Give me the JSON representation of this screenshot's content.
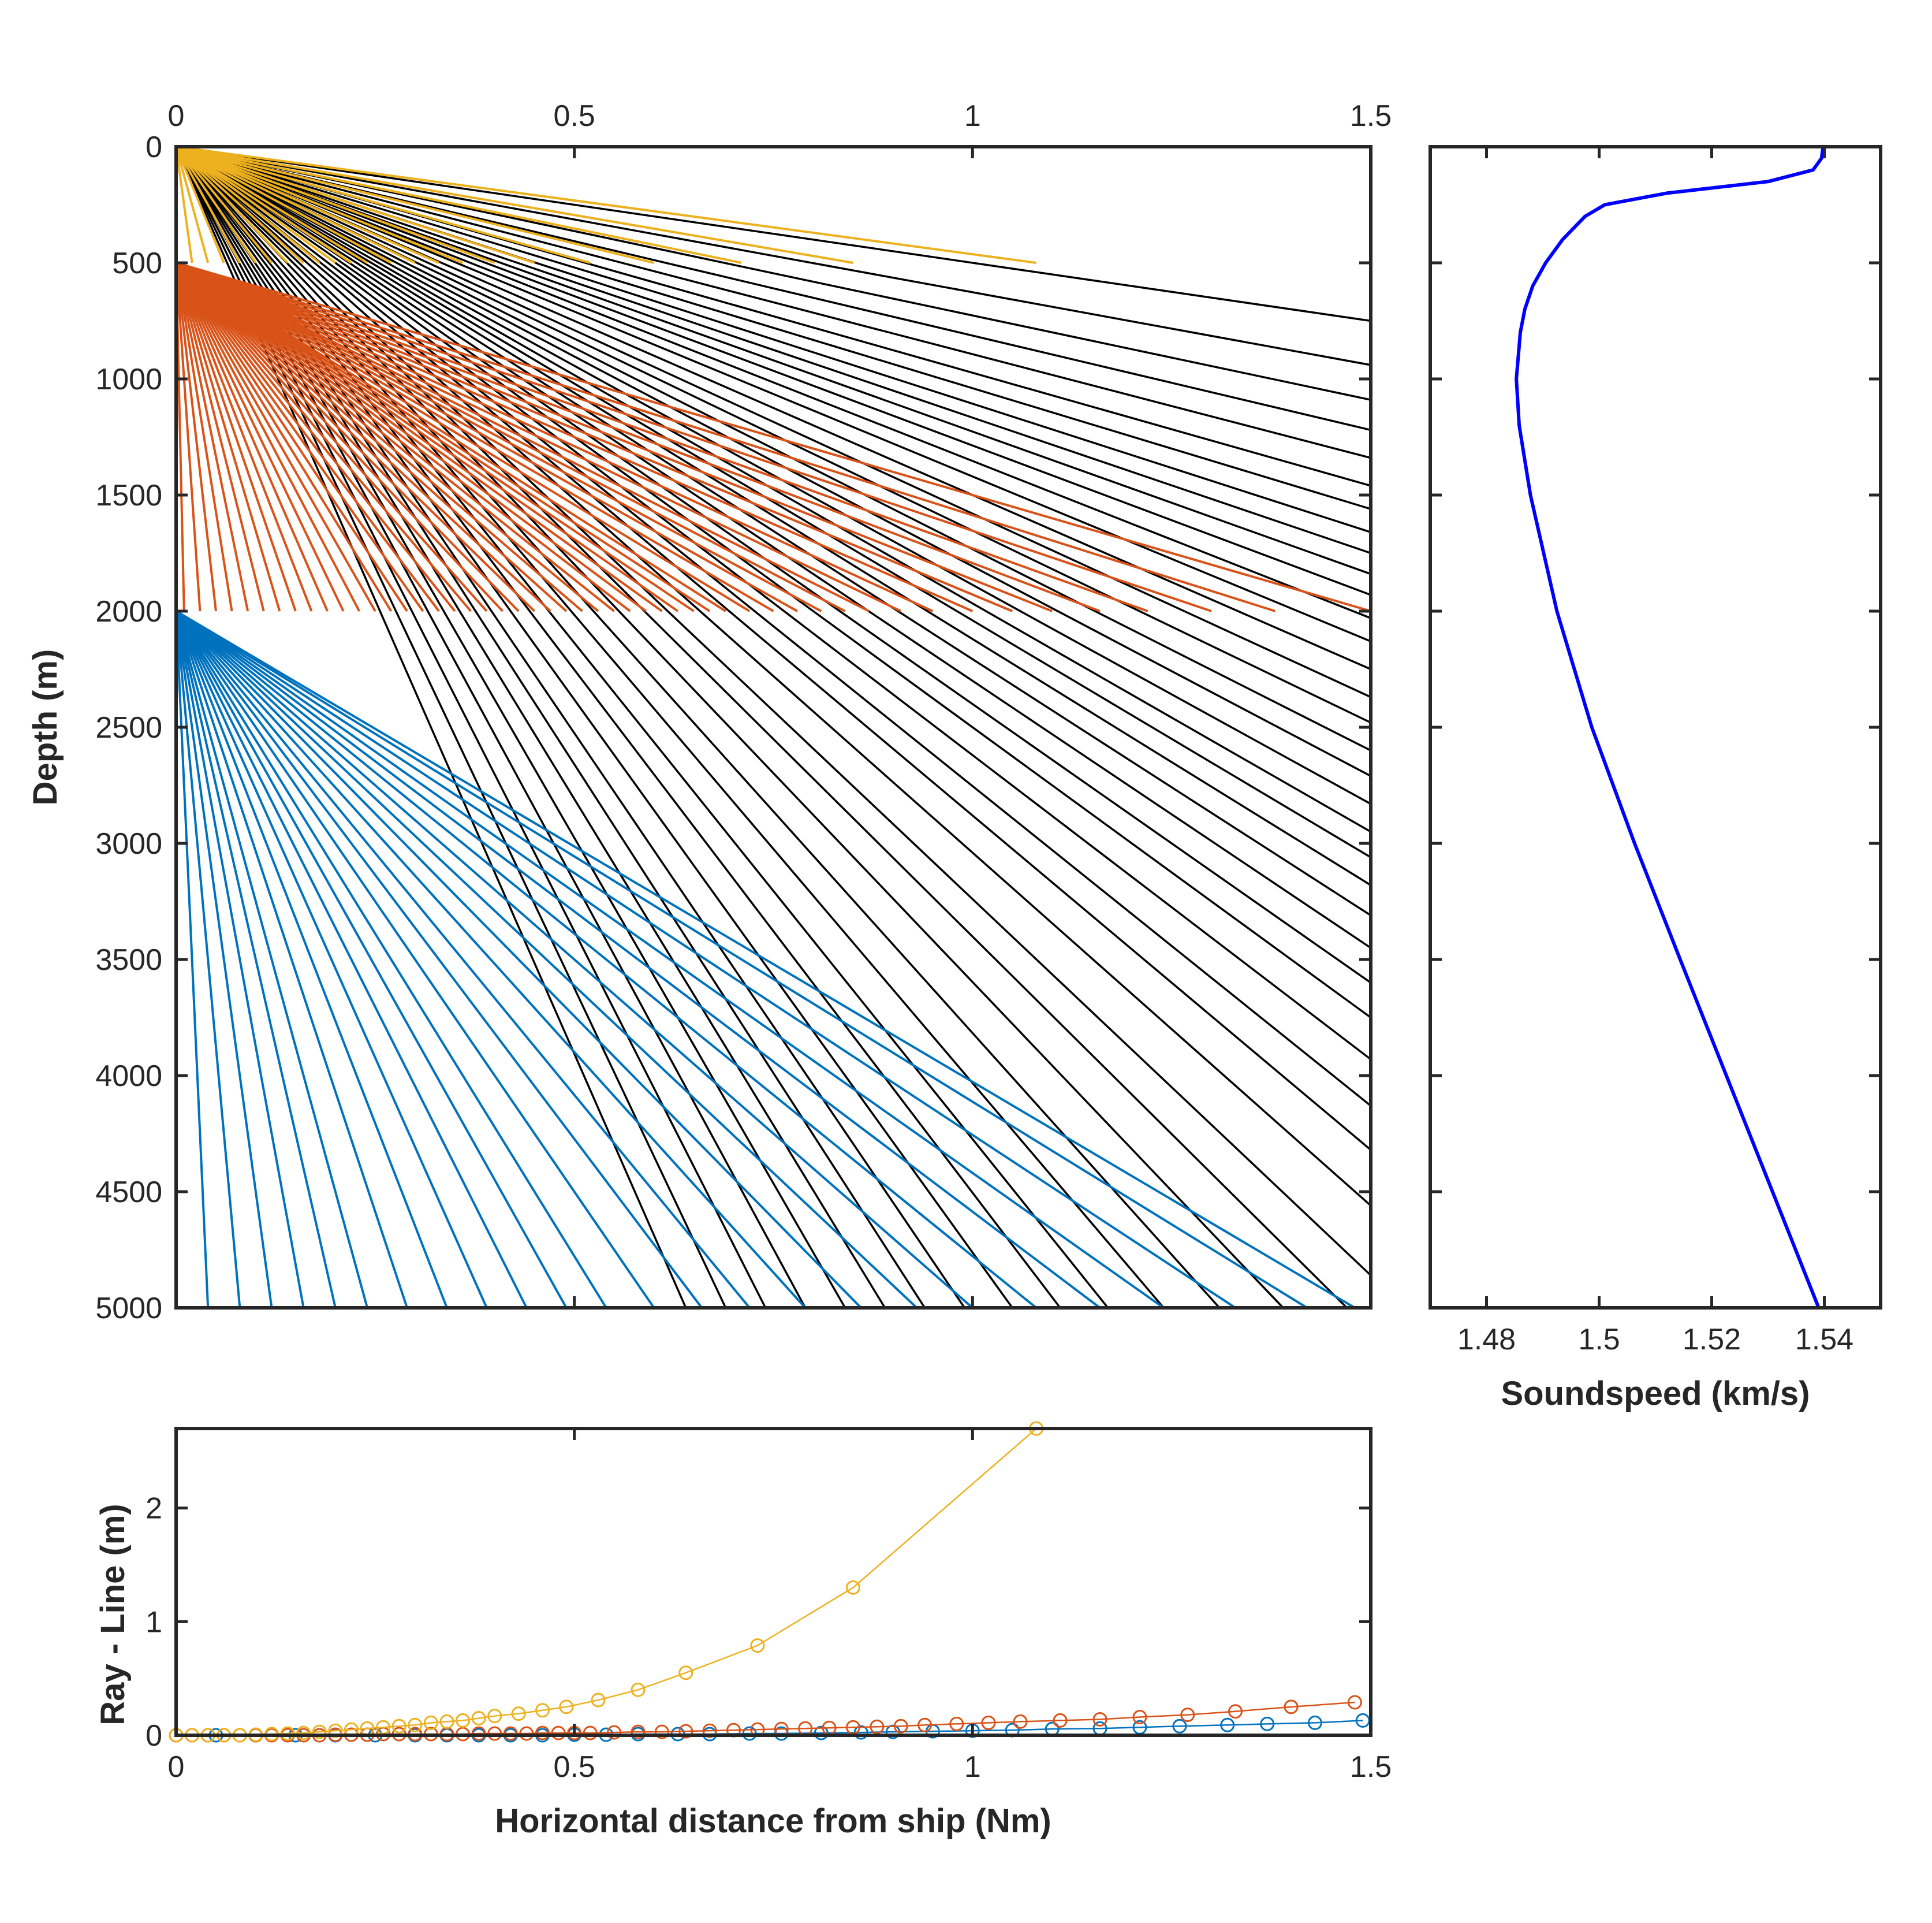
{
  "chart_data": [
    {
      "id": "ray-paths",
      "type": "line",
      "title": "",
      "xlabel": "",
      "ylabel": "Depth (m)",
      "xlim": [
        0,
        1.5
      ],
      "ylim": [
        0,
        5000
      ],
      "y_reversed": true,
      "x_axis_position": "top",
      "xticks": [
        "0",
        "0.5",
        "1",
        "1.5"
      ],
      "yticks": [
        "0",
        "500",
        "1000",
        "1500",
        "2000",
        "2500",
        "3000",
        "3500",
        "4000",
        "4500",
        "5000"
      ],
      "grid": false,
      "legend": "none",
      "colors": {
        "straight_line": "#000000",
        "ray_0_500": "#EDB120",
        "ray_500_2000": "#D95319",
        "ray_2000_5000": "#0072BD"
      },
      "fans": [
        {
          "series": "ray_0_500",
          "depth_top": 0,
          "depth_bottom": 500,
          "x_at_bottom": [
            0,
            0.02,
            0.04,
            0.06,
            0.08,
            0.1,
            0.12,
            0.14,
            0.16,
            0.18,
            0.2,
            0.22,
            0.24,
            0.27,
            0.3,
            0.33,
            0.36,
            0.4,
            0.45,
            0.52,
            0.6,
            0.71,
            0.85,
            1.08
          ]
        },
        {
          "series": "ray_500_2000",
          "depth_top": 500,
          "depth_bottom": 2000,
          "x_at_bottom": [
            0.0,
            0.01,
            0.03,
            0.05,
            0.07,
            0.09,
            0.11,
            0.13,
            0.15,
            0.17,
            0.19,
            0.21,
            0.23,
            0.25,
            0.27,
            0.29,
            0.31,
            0.33,
            0.35,
            0.37,
            0.39,
            0.41,
            0.43,
            0.45,
            0.47,
            0.49,
            0.51,
            0.53,
            0.55,
            0.57,
            0.59,
            0.61,
            0.63,
            0.65,
            0.67,
            0.69,
            0.72,
            0.75,
            0.78,
            0.81,
            0.84,
            0.87,
            0.91,
            0.95,
            1.0,
            1.05,
            1.1,
            1.16,
            1.22,
            1.3,
            1.38,
            1.5
          ]
        },
        {
          "series": "ray_2000_5000",
          "depth_top": 2000,
          "depth_bottom": 5000,
          "x_at_bottom": [
            0.04,
            0.08,
            0.12,
            0.16,
            0.2,
            0.24,
            0.29,
            0.34,
            0.39,
            0.44,
            0.49,
            0.54,
            0.6,
            0.66,
            0.72,
            0.79,
            0.86,
            0.93,
            1.0,
            1.08,
            1.16,
            1.24,
            1.33,
            1.42,
            1.48
          ]
        }
      ],
      "straight_line_x_at_5000": [
        0.64,
        0.69,
        0.74,
        0.79,
        0.84,
        0.89,
        0.94,
        0.99,
        1.05,
        1.11,
        1.17,
        1.24,
        1.31,
        1.39,
        1.47
      ],
      "straight_line_depth_at_x_1_5": [
        750,
        940,
        1090,
        1220,
        1340,
        1460,
        1560,
        1660,
        1750,
        1840,
        1930,
        2030,
        2130,
        2250,
        2370,
        2480,
        2600,
        2710,
        2830,
        2950,
        3060,
        3180,
        3310,
        3450,
        3600,
        3750,
        3930,
        4130,
        4320,
        4560,
        4860
      ]
    },
    {
      "id": "sound-speed",
      "type": "line",
      "title": "",
      "xlabel": "Soundspeed (km/s)",
      "ylabel": "",
      "xlim": [
        1.47,
        1.55
      ],
      "ylim": [
        0,
        5000
      ],
      "y_reversed": true,
      "xticks": [
        "1.48",
        "1.5",
        "1.52",
        "1.54"
      ],
      "grid": false,
      "legend": "none",
      "color": "#0000FF",
      "depth": [
        0,
        50,
        100,
        150,
        200,
        250,
        300,
        400,
        500,
        600,
        700,
        800,
        1000,
        1200,
        1500,
        2000,
        2500,
        3000,
        3500,
        4000,
        4500,
        5000
      ],
      "speed": [
        1.5398,
        1.5395,
        1.538,
        1.53,
        1.512,
        1.501,
        1.4975,
        1.4935,
        1.4905,
        1.4882,
        1.4868,
        1.486,
        1.4853,
        1.4858,
        1.4878,
        1.4925,
        1.4987,
        1.5063,
        1.5144,
        1.5226,
        1.5308,
        1.539
      ]
    },
    {
      "id": "ray-minus-line",
      "type": "scatter",
      "title": "",
      "xlabel": "Horizontal distance from ship (Nm)",
      "ylabel": "Ray - Line (m)",
      "xlim": [
        0,
        1.5
      ],
      "ylim": [
        0,
        2.7
      ],
      "xticks": [
        "0",
        "0.5",
        "1",
        "1.5"
      ],
      "yticks": [
        "0",
        "1",
        "2"
      ],
      "grid": false,
      "legend": "none",
      "series": [
        {
          "color": "#EDB120",
          "x": [
            0.0,
            0.02,
            0.04,
            0.06,
            0.08,
            0.1,
            0.12,
            0.14,
            0.16,
            0.18,
            0.2,
            0.22,
            0.24,
            0.26,
            0.28,
            0.3,
            0.32,
            0.34,
            0.36,
            0.38,
            0.4,
            0.43,
            0.46,
            0.49,
            0.53,
            0.58,
            0.64,
            0.73,
            0.85,
            1.08
          ],
          "y": [
            0.0,
            0.0,
            0.0,
            0.0,
            0.0,
            0.005,
            0.01,
            0.015,
            0.02,
            0.03,
            0.04,
            0.05,
            0.06,
            0.07,
            0.08,
            0.09,
            0.11,
            0.12,
            0.13,
            0.15,
            0.17,
            0.19,
            0.22,
            0.25,
            0.31,
            0.4,
            0.55,
            0.79,
            1.3,
            2.7
          ]
        },
        {
          "color": "#D95319",
          "x": [
            0.0,
            0.02,
            0.04,
            0.06,
            0.08,
            0.1,
            0.12,
            0.14,
            0.16,
            0.18,
            0.2,
            0.22,
            0.24,
            0.26,
            0.28,
            0.3,
            0.32,
            0.34,
            0.36,
            0.38,
            0.4,
            0.42,
            0.44,
            0.46,
            0.48,
            0.5,
            0.52,
            0.55,
            0.58,
            0.61,
            0.64,
            0.67,
            0.7,
            0.73,
            0.76,
            0.79,
            0.82,
            0.85,
            0.88,
            0.91,
            0.94,
            0.98,
            1.02,
            1.06,
            1.11,
            1.16,
            1.21,
            1.27,
            1.33,
            1.4,
            1.48
          ],
          "y": [
            0.0,
            0.0,
            0.0,
            0.0,
            0.0,
            0.0,
            0.0,
            0.0,
            0.0,
            0.0,
            0.005,
            0.005,
            0.005,
            0.01,
            0.01,
            0.01,
            0.01,
            0.01,
            0.01,
            0.015,
            0.015,
            0.015,
            0.015,
            0.02,
            0.02,
            0.02,
            0.02,
            0.025,
            0.03,
            0.03,
            0.035,
            0.04,
            0.045,
            0.05,
            0.055,
            0.06,
            0.065,
            0.07,
            0.075,
            0.08,
            0.09,
            0.1,
            0.11,
            0.12,
            0.13,
            0.14,
            0.16,
            0.18,
            0.21,
            0.25,
            0.29
          ]
        },
        {
          "color": "#0072BD",
          "x": [
            0.0,
            0.05,
            0.1,
            0.15,
            0.2,
            0.25,
            0.3,
            0.34,
            0.38,
            0.42,
            0.46,
            0.5,
            0.54,
            0.58,
            0.63,
            0.67,
            0.72,
            0.76,
            0.81,
            0.86,
            0.9,
            0.95,
            1.0,
            1.05,
            1.1,
            1.16,
            1.21,
            1.26,
            1.32,
            1.37,
            1.43,
            1.49
          ],
          "y": [
            0.0,
            0.0,
            0.0,
            0.0,
            0.0,
            0.0,
            0.0,
            0.0,
            0.0,
            0.0,
            0.0,
            0.005,
            0.005,
            0.01,
            0.01,
            0.01,
            0.015,
            0.015,
            0.02,
            0.025,
            0.03,
            0.035,
            0.04,
            0.045,
            0.055,
            0.06,
            0.07,
            0.08,
            0.09,
            0.1,
            0.11,
            0.13
          ]
        }
      ]
    }
  ]
}
